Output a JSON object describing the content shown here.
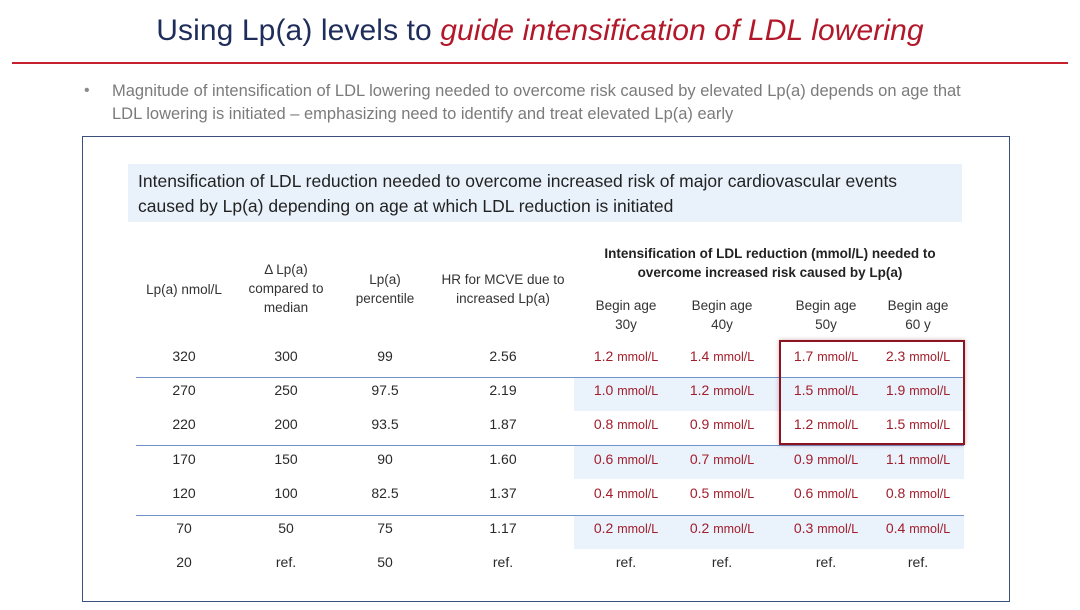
{
  "slide": {
    "title_plain": "Using Lp(a) levels to ",
    "title_highlight": "guide intensification of LDL lowering",
    "bullet_text": "Magnitude of intensification of LDL lowering needed to overcome risk caused by elevated Lp(a) depends on age that LDL lowering is initiated – emphasizing need to identify and treat elevated Lp(a) early",
    "table_caption": "Intensification of LDL reduction needed to overcome increased risk of major cardiovascular events caused by Lp(a) depending on age at which LDL reduction is initiated"
  },
  "table": {
    "headers": [
      {
        "line1": "Lp(a) nmol/L",
        "line2": "",
        "line3": ""
      },
      {
        "line1": "Δ Lp(a)",
        "line2": "compared to",
        "line3": "median"
      },
      {
        "line1": "Lp(a)",
        "line2": "percentile",
        "line3": ""
      },
      {
        "line1": "HR for MCVE due to",
        "line2": "increased Lp(a)",
        "line3": ""
      }
    ],
    "group_header": {
      "line1": "Intensification of LDL reduction (mmol/L) needed to",
      "line2": "overcome increased risk caused by Lp(a)"
    },
    "age_headers": [
      {
        "line1": "Begin age",
        "line2": "30y"
      },
      {
        "line1": "Begin age",
        "line2": "40y"
      },
      {
        "line1": "Begin age",
        "line2": "50y"
      },
      {
        "line1": "Begin age",
        "line2": "60 y"
      }
    ],
    "unit": "mmol/L",
    "rows": [
      {
        "lpa": "320",
        "delta": "300",
        "pct": "99",
        "hr": "2.56",
        "ages": [
          "1.2",
          "1.4",
          "1.7",
          "2.3"
        ]
      },
      {
        "lpa": "270",
        "delta": "250",
        "pct": "97.5",
        "hr": "2.19",
        "ages": [
          "1.0",
          "1.2",
          "1.5",
          "1.9"
        ]
      },
      {
        "lpa": "220",
        "delta": "200",
        "pct": "93.5",
        "hr": "1.87",
        "ages": [
          "0.8",
          "0.9",
          "1.2",
          "1.5"
        ]
      },
      {
        "lpa": "170",
        "delta": "150",
        "pct": "90",
        "hr": "1.60",
        "ages": [
          "0.6",
          "0.7",
          "0.9",
          "1.1"
        ]
      },
      {
        "lpa": "120",
        "delta": "100",
        "pct": "82.5",
        "hr": "1.37",
        "ages": [
          "0.4",
          "0.5",
          "0.6",
          "0.8"
        ]
      },
      {
        "lpa": "70",
        "delta": "50",
        "pct": "75",
        "hr": "1.17",
        "ages": [
          "0.2",
          "0.2",
          "0.3",
          "0.4"
        ]
      },
      {
        "lpa": "20",
        "delta": "ref.",
        "pct": "50",
        "hr": "ref.",
        "ages": [
          "ref.",
          "ref.",
          "ref.",
          "ref."
        ]
      }
    ]
  },
  "colors": {
    "title": "#1f2d5a",
    "highlight": "#b3182a",
    "value_red": "#a11d2b",
    "row_shade": "#eaf2fb",
    "rule": "#7093c9"
  }
}
